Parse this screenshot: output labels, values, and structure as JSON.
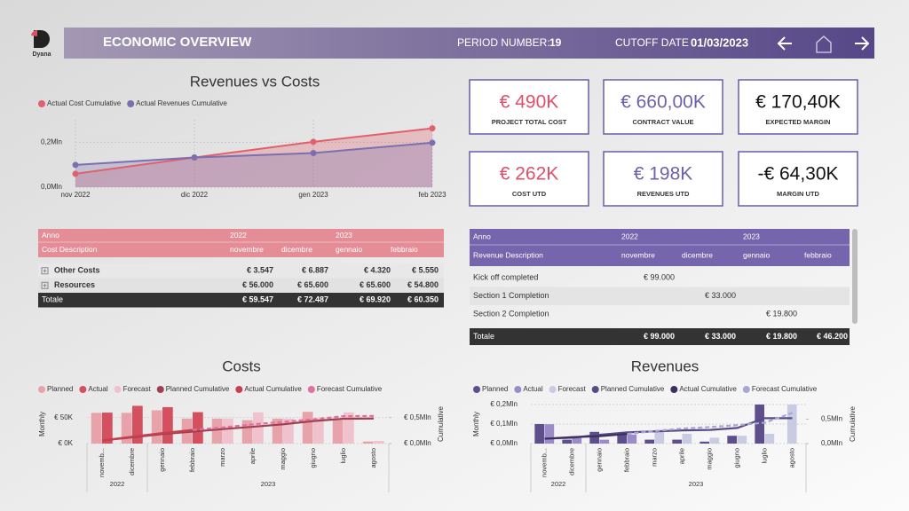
{
  "header": {
    "logo": "Dyana",
    "title": "ECONOMIC OVERVIEW",
    "period_label": "PERIOD NUMBER:",
    "period": "19",
    "cutoff_label": "CUTOFF DATE",
    "cutoff": "01/03/2023"
  },
  "kpis": [
    {
      "value": "€ 490K",
      "label": "PROJECT TOTAL COST",
      "color": "#e0506a"
    },
    {
      "value": "€ 660,00K",
      "label": "CONTRACT VALUE",
      "color": "#6f61a8"
    },
    {
      "value": "€ 170,40K",
      "label": "EXPECTED MARGIN",
      "color": "#111111"
    },
    {
      "value": "€ 262K",
      "label": "COST UTD",
      "color": "#e0506a"
    },
    {
      "value": "€ 198K",
      "label": "REVENUES UTD",
      "color": "#6f61a8"
    },
    {
      "value": "-€ 64,30K",
      "label": "MARGIN UTD",
      "color": "#111111"
    }
  ],
  "tables": [
    {
      "year_header": "Anno",
      "years": [
        {
          "label": "2022",
          "count": 2
        },
        {
          "label": "2023",
          "count": 2
        }
      ],
      "desc_header": "Cost Description",
      "columns": [
        "novembre",
        "dicembre",
        "gennaio",
        "febbraio"
      ],
      "color": "#e58d96",
      "rows": [
        {
          "label": "Other Costs",
          "cells": [
            "€ 3.547",
            "€ 6.887",
            "€ 4.320",
            "€ 5.550"
          ]
        },
        {
          "label": "Resources",
          "cells": [
            "€ 56.000",
            "€ 65.600",
            "€ 65.600",
            "€ 54.800"
          ]
        }
      ],
      "total": {
        "label": "Totale",
        "cells": [
          "€ 59.547",
          "€ 72.487",
          "€ 69.920",
          "€ 60.350"
        ]
      }
    },
    {
      "year_header": "Anno",
      "years": [
        {
          "label": "2022",
          "count": 2
        },
        {
          "label": "2023",
          "count": 2
        }
      ],
      "desc_header": "Revenue Description",
      "columns": [
        "novembre",
        "dicembre",
        "gennaio",
        "febbraio"
      ],
      "color": "#7565ad",
      "rows": [
        {
          "label": "Kick off completed",
          "cells": [
            "€ 99.000",
            null,
            null,
            null
          ]
        },
        {
          "label": "Section 1 Completion",
          "cells": [
            null,
            "€ 33.000",
            null,
            null
          ]
        },
        {
          "label": "Section 2 Completion",
          "cells": [
            null,
            null,
            "€ 19.800",
            null
          ]
        }
      ],
      "total": {
        "label": "Totale",
        "cells": [
          "€ 99.000",
          "€ 33.000",
          "€ 19.800",
          "€ 46.200"
        ]
      }
    }
  ],
  "chart_data": [
    {
      "type": "area",
      "title": "Revenues vs Costs",
      "categories": [
        "nov 2022",
        "dic 2022",
        "gen 2023",
        "feb 2023"
      ],
      "series": [
        {
          "name": "Actual Cost Cumulative",
          "color": "#e0606e",
          "values": [
            0.0595,
            0.132,
            0.202,
            0.262
          ]
        },
        {
          "name": "Actual Revenues Cumulative",
          "color": "#7b6fb0",
          "values": [
            0.099,
            0.132,
            0.152,
            0.198
          ]
        }
      ],
      "ylim": [
        0,
        0.3
      ],
      "yticks": [
        {
          "value": 0,
          "label": "0,0Mln"
        },
        {
          "value": 0.2,
          "label": "0,2Mln"
        }
      ],
      "grid": true,
      "legend": "top-left"
    },
    {
      "type": "combo",
      "title": "Costs",
      "categories": [
        "novemb...",
        "dicembre",
        "gennaio",
        "febbraio",
        "marzo",
        "aprile",
        "maggio",
        "giugno",
        "luglio",
        "agosto"
      ],
      "x_groups": [
        {
          "label": "2022",
          "count": 2
        },
        {
          "label": "2023",
          "count": 8
        }
      ],
      "series": [
        {
          "name": "Planned",
          "kind": "bar",
          "color": "#e8a3aa",
          "values": [
            59,
            59,
            64,
            48,
            48,
            45,
            48,
            61,
            45,
            4
          ]
        },
        {
          "name": "Actual",
          "kind": "bar",
          "color": "#d4505f",
          "values": [
            59.5,
            72.5,
            70,
            60.4,
            null,
            null,
            null,
            null,
            null,
            null
          ]
        },
        {
          "name": "Forecast",
          "kind": "bar",
          "color": "#f0c2cd",
          "values": [
            null,
            null,
            null,
            null,
            48,
            60,
            48,
            48,
            60,
            5
          ]
        },
        {
          "name": "Planned Cumulative",
          "kind": "line",
          "axis": "y2",
          "color": "#a0404e",
          "values": [
            0.059,
            0.118,
            0.182,
            0.23,
            0.278,
            0.323,
            0.371,
            0.432,
            0.477,
            0.481
          ]
        },
        {
          "name": "Actual Cumulative",
          "kind": "line",
          "axis": "y2",
          "color": "#c8404f",
          "values": [
            0.06,
            0.132,
            0.202,
            0.262,
            null,
            null,
            null,
            null,
            null,
            null
          ]
        },
        {
          "name": "Forecast Cumulative",
          "kind": "line",
          "axis": "y2",
          "dash": true,
          "color": "#e070a0",
          "values": [
            null,
            null,
            null,
            0.262,
            0.31,
            0.37,
            0.418,
            0.466,
            0.526,
            0.531
          ]
        }
      ],
      "ylabel": "Monthly",
      "y2label": "Cumulative",
      "ylim": [
        0,
        75
      ],
      "yticks": [
        {
          "value": 0,
          "label": "€ 0K"
        },
        {
          "value": 50,
          "label": "€ 50K"
        }
      ],
      "y2lim": [
        0,
        0.75
      ],
      "y2ticks": [
        {
          "value": 0,
          "label": "€ 0,0Mln"
        },
        {
          "value": 0.5,
          "label": "€ 0,5Mln"
        }
      ],
      "grid": true,
      "legend": "top-left"
    },
    {
      "type": "combo",
      "title": "Revenues",
      "categories": [
        "novemb...",
        "dicembre",
        "gennaio",
        "febbraio",
        "marzo",
        "aprile",
        "maggio",
        "giugno",
        "luglio",
        "agosto"
      ],
      "x_groups": [
        {
          "label": "2022",
          "count": 2
        },
        {
          "label": "2023",
          "count": 8
        }
      ],
      "series": [
        {
          "name": "Planned",
          "kind": "bar",
          "color": "#5e4f8c",
          "values": [
            0.1,
            0.02,
            0.06,
            0.05,
            0.02,
            0.02,
            0.01,
            0.04,
            0.2,
            null
          ]
        },
        {
          "name": "Actual",
          "kind": "bar",
          "color": "#9a8cc8",
          "values": [
            0.099,
            0.033,
            0.0198,
            0.0462,
            null,
            null,
            null,
            null,
            null,
            null
          ]
        },
        {
          "name": "Forecast",
          "kind": "bar",
          "color": "#c9cbe3",
          "values": [
            null,
            null,
            null,
            null,
            0.06,
            0.05,
            0.03,
            0.04,
            0.05,
            0.2
          ]
        },
        {
          "name": "Planned Cumulative",
          "kind": "line",
          "axis": "y2",
          "color": "#5a4b85",
          "values": [
            0.1,
            0.12,
            0.18,
            0.23,
            0.25,
            0.27,
            0.28,
            0.32,
            0.52,
            0.52
          ]
        },
        {
          "name": "Actual Cumulative",
          "kind": "line",
          "axis": "y2",
          "color": "#3d3060",
          "values": [
            0.099,
            0.132,
            0.152,
            0.198,
            null,
            null,
            null,
            null,
            null,
            null
          ]
        },
        {
          "name": "Forecast Cumulative",
          "kind": "line",
          "axis": "y2",
          "dash": true,
          "color": "#a8a6d6",
          "values": [
            null,
            null,
            null,
            0.198,
            0.258,
            0.308,
            0.338,
            0.378,
            0.428,
            0.628
          ]
        }
      ],
      "ylabel": "Monthly",
      "y2label": "Cumulative",
      "ylim": [
        0,
        0.2
      ],
      "yticks": [
        {
          "value": 0,
          "label": "€ 0,0Mln"
        },
        {
          "value": 0.1,
          "label": "€ 0,1Mln"
        },
        {
          "value": 0.2,
          "label": "€ 0,2Mln"
        }
      ],
      "y2lim": [
        0,
        0.8
      ],
      "y2ticks": [
        {
          "value": 0,
          "label": "0,0Mln"
        },
        {
          "value": 0.5,
          "label": "0,5Mln"
        }
      ],
      "grid": true,
      "legend": "top-left"
    }
  ]
}
